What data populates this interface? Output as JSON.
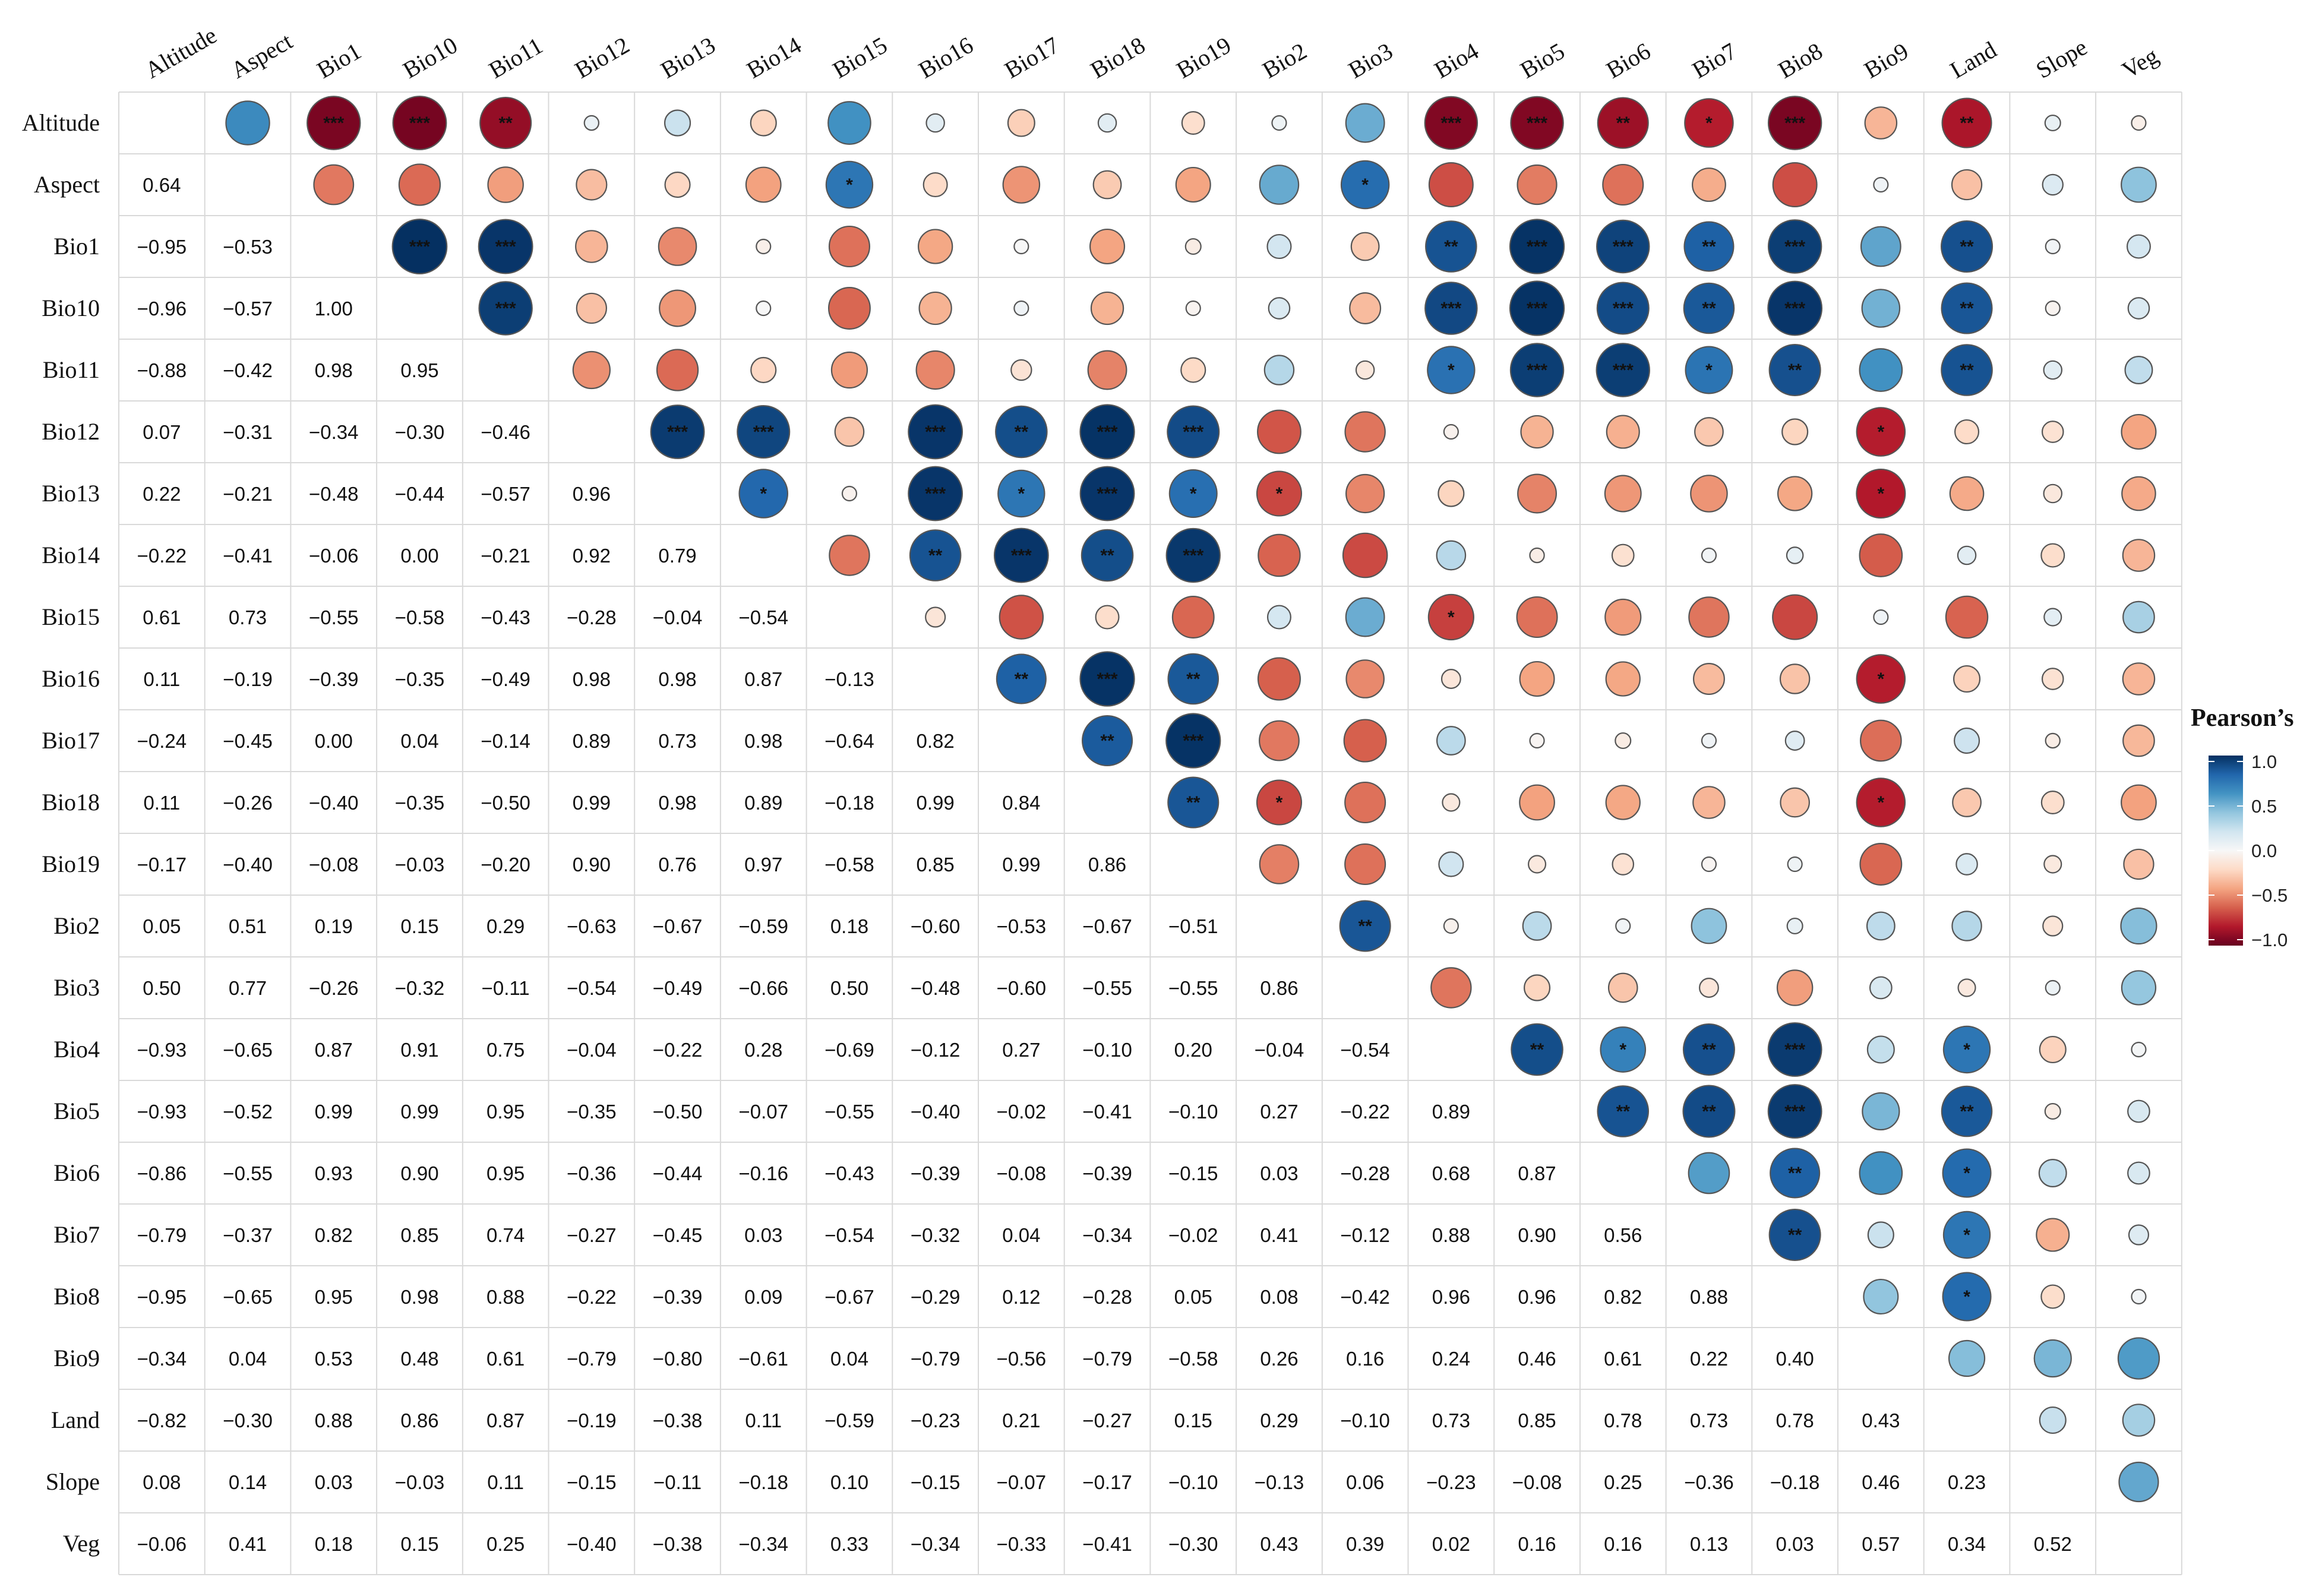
{
  "chart_data": {
    "type": "heatmap",
    "variables": [
      "Altitude",
      "Aspect",
      "Bio1",
      "Bio10",
      "Bio11",
      "Bio12",
      "Bio13",
      "Bio14",
      "Bio15",
      "Bio16",
      "Bio17",
      "Bio18",
      "Bio19",
      "Bio2",
      "Bio3",
      "Bio4",
      "Bio5",
      "Bio6",
      "Bio7",
      "Bio8",
      "Bio9",
      "Land",
      "Slope",
      "Veg"
    ],
    "lower_triangle": [
      [],
      [
        0.64
      ],
      [
        -0.95,
        -0.53
      ],
      [
        -0.96,
        -0.57,
        1.0
      ],
      [
        -0.88,
        -0.42,
        0.98,
        0.95
      ],
      [
        0.07,
        -0.31,
        -0.34,
        -0.3,
        -0.46
      ],
      [
        0.22,
        -0.21,
        -0.48,
        -0.44,
        -0.57,
        0.96
      ],
      [
        -0.22,
        -0.41,
        -0.06,
        0.0,
        -0.21,
        0.92,
        0.79
      ],
      [
        0.61,
        0.73,
        -0.55,
        -0.58,
        -0.43,
        -0.28,
        -0.04,
        -0.54
      ],
      [
        0.11,
        -0.19,
        -0.39,
        -0.35,
        -0.49,
        0.98,
        0.98,
        0.87,
        -0.13
      ],
      [
        -0.24,
        -0.45,
        -0.0,
        0.04,
        -0.14,
        0.89,
        0.73,
        0.98,
        -0.64,
        0.82
      ],
      [
        0.11,
        -0.26,
        -0.4,
        -0.35,
        -0.5,
        0.99,
        0.98,
        0.89,
        -0.18,
        0.99,
        0.84
      ],
      [
        -0.17,
        -0.4,
        -0.08,
        -0.03,
        -0.2,
        0.9,
        0.76,
        0.97,
        -0.58,
        0.85,
        0.99,
        0.86
      ],
      [
        0.05,
        0.51,
        0.19,
        0.15,
        0.29,
        -0.63,
        -0.67,
        -0.59,
        0.18,
        -0.6,
        -0.53,
        -0.67,
        -0.51
      ],
      [
        0.5,
        0.77,
        -0.26,
        -0.32,
        -0.11,
        -0.54,
        -0.49,
        -0.66,
        0.5,
        -0.48,
        -0.6,
        -0.55,
        -0.55,
        0.86
      ],
      [
        -0.93,
        -0.65,
        0.87,
        0.91,
        0.75,
        -0.04,
        -0.22,
        0.28,
        -0.69,
        -0.12,
        0.27,
        -0.1,
        0.2,
        -0.04,
        -0.54
      ],
      [
        -0.93,
        -0.52,
        0.99,
        0.99,
        0.95,
        -0.35,
        -0.5,
        -0.07,
        -0.55,
        -0.4,
        -0.02,
        -0.41,
        -0.1,
        0.27,
        -0.22,
        0.89
      ],
      [
        -0.86,
        -0.55,
        0.93,
        0.9,
        0.95,
        -0.36,
        -0.44,
        -0.16,
        -0.43,
        -0.39,
        -0.08,
        -0.39,
        -0.15,
        0.03,
        -0.28,
        0.68,
        0.87
      ],
      [
        -0.79,
        -0.37,
        0.82,
        0.85,
        0.74,
        -0.27,
        -0.45,
        0.03,
        -0.54,
        -0.32,
        0.04,
        -0.34,
        -0.02,
        0.41,
        -0.12,
        0.88,
        0.9,
        0.56
      ],
      [
        -0.95,
        -0.65,
        0.95,
        0.98,
        0.88,
        -0.22,
        -0.39,
        0.09,
        -0.67,
        -0.29,
        0.12,
        -0.28,
        0.05,
        0.08,
        -0.42,
        0.96,
        0.96,
        0.82,
        0.88
      ],
      [
        -0.34,
        0.04,
        0.53,
        0.48,
        0.61,
        -0.79,
        -0.8,
        -0.61,
        0.04,
        -0.79,
        -0.56,
        -0.79,
        -0.58,
        0.26,
        0.16,
        0.24,
        0.46,
        0.61,
        0.22,
        0.4
      ],
      [
        -0.82,
        -0.3,
        0.88,
        0.86,
        0.87,
        -0.19,
        -0.38,
        0.11,
        -0.59,
        -0.23,
        0.21,
        -0.27,
        0.15,
        0.29,
        -0.1,
        0.73,
        0.85,
        0.78,
        0.73,
        0.78,
        0.43
      ],
      [
        0.08,
        0.14,
        0.03,
        -0.03,
        0.11,
        -0.15,
        -0.11,
        -0.18,
        0.1,
        -0.15,
        -0.07,
        -0.17,
        -0.1,
        -0.13,
        0.06,
        -0.23,
        -0.08,
        0.25,
        -0.36,
        -0.18,
        0.46,
        0.23
      ],
      [
        -0.06,
        0.41,
        0.18,
        0.15,
        0.25,
        -0.4,
        -0.38,
        -0.34,
        0.33,
        -0.34,
        -0.33,
        -0.41,
        -0.3,
        0.43,
        0.39,
        0.02,
        0.16,
        0.16,
        0.13,
        0.03,
        0.57,
        0.34,
        0.52
      ]
    ],
    "significance": [
      {
        "row": 0,
        "col": 2,
        "mark": "***"
      },
      {
        "row": 0,
        "col": 3,
        "mark": "***"
      },
      {
        "row": 0,
        "col": 4,
        "mark": "**"
      },
      {
        "row": 0,
        "col": 15,
        "mark": "***"
      },
      {
        "row": 0,
        "col": 16,
        "mark": "***"
      },
      {
        "row": 0,
        "col": 17,
        "mark": "**"
      },
      {
        "row": 0,
        "col": 18,
        "mark": "*"
      },
      {
        "row": 0,
        "col": 19,
        "mark": "***"
      },
      {
        "row": 0,
        "col": 21,
        "mark": "**"
      },
      {
        "row": 1,
        "col": 8,
        "mark": "*"
      },
      {
        "row": 1,
        "col": 14,
        "mark": "*"
      },
      {
        "row": 2,
        "col": 3,
        "mark": "***"
      },
      {
        "row": 2,
        "col": 4,
        "mark": "***"
      },
      {
        "row": 2,
        "col": 15,
        "mark": "**"
      },
      {
        "row": 2,
        "col": 16,
        "mark": "***"
      },
      {
        "row": 2,
        "col": 17,
        "mark": "***"
      },
      {
        "row": 2,
        "col": 18,
        "mark": "**"
      },
      {
        "row": 2,
        "col": 19,
        "mark": "***"
      },
      {
        "row": 2,
        "col": 21,
        "mark": "**"
      },
      {
        "row": 3,
        "col": 4,
        "mark": "***"
      },
      {
        "row": 3,
        "col": 15,
        "mark": "***"
      },
      {
        "row": 3,
        "col": 16,
        "mark": "***"
      },
      {
        "row": 3,
        "col": 17,
        "mark": "***"
      },
      {
        "row": 3,
        "col": 18,
        "mark": "**"
      },
      {
        "row": 3,
        "col": 19,
        "mark": "***"
      },
      {
        "row": 3,
        "col": 21,
        "mark": "**"
      },
      {
        "row": 4,
        "col": 15,
        "mark": "*"
      },
      {
        "row": 4,
        "col": 16,
        "mark": "***"
      },
      {
        "row": 4,
        "col": 17,
        "mark": "***"
      },
      {
        "row": 4,
        "col": 18,
        "mark": "*"
      },
      {
        "row": 4,
        "col": 19,
        "mark": "**"
      },
      {
        "row": 4,
        "col": 21,
        "mark": "**"
      },
      {
        "row": 5,
        "col": 6,
        "mark": "***"
      },
      {
        "row": 5,
        "col": 7,
        "mark": "***"
      },
      {
        "row": 5,
        "col": 9,
        "mark": "***"
      },
      {
        "row": 5,
        "col": 10,
        "mark": "**"
      },
      {
        "row": 5,
        "col": 11,
        "mark": "***"
      },
      {
        "row": 5,
        "col": 12,
        "mark": "***"
      },
      {
        "row": 5,
        "col": 20,
        "mark": "*"
      },
      {
        "row": 6,
        "col": 7,
        "mark": "*"
      },
      {
        "row": 6,
        "col": 9,
        "mark": "***"
      },
      {
        "row": 6,
        "col": 10,
        "mark": "*"
      },
      {
        "row": 6,
        "col": 11,
        "mark": "***"
      },
      {
        "row": 6,
        "col": 12,
        "mark": "*"
      },
      {
        "row": 6,
        "col": 13,
        "mark": "*"
      },
      {
        "row": 6,
        "col": 20,
        "mark": "*"
      },
      {
        "row": 7,
        "col": 9,
        "mark": "**"
      },
      {
        "row": 7,
        "col": 10,
        "mark": "***"
      },
      {
        "row": 7,
        "col": 11,
        "mark": "**"
      },
      {
        "row": 7,
        "col": 12,
        "mark": "***"
      },
      {
        "row": 8,
        "col": 15,
        "mark": "*"
      },
      {
        "row": 9,
        "col": 10,
        "mark": "**"
      },
      {
        "row": 9,
        "col": 11,
        "mark": "***"
      },
      {
        "row": 9,
        "col": 12,
        "mark": "**"
      },
      {
        "row": 9,
        "col": 20,
        "mark": "*"
      },
      {
        "row": 10,
        "col": 11,
        "mark": "**"
      },
      {
        "row": 10,
        "col": 12,
        "mark": "***"
      },
      {
        "row": 11,
        "col": 12,
        "mark": "**"
      },
      {
        "row": 11,
        "col": 13,
        "mark": "*"
      },
      {
        "row": 11,
        "col": 20,
        "mark": "*"
      },
      {
        "row": 13,
        "col": 14,
        "mark": "**"
      },
      {
        "row": 15,
        "col": 16,
        "mark": "**"
      },
      {
        "row": 15,
        "col": 17,
        "mark": "*"
      },
      {
        "row": 15,
        "col": 18,
        "mark": "**"
      },
      {
        "row": 15,
        "col": 19,
        "mark": "***"
      },
      {
        "row": 15,
        "col": 21,
        "mark": "*"
      },
      {
        "row": 16,
        "col": 17,
        "mark": "**"
      },
      {
        "row": 16,
        "col": 18,
        "mark": "**"
      },
      {
        "row": 16,
        "col": 19,
        "mark": "***"
      },
      {
        "row": 16,
        "col": 21,
        "mark": "**"
      },
      {
        "row": 17,
        "col": 19,
        "mark": "**"
      },
      {
        "row": 17,
        "col": 21,
        "mark": "*"
      },
      {
        "row": 18,
        "col": 19,
        "mark": "**"
      },
      {
        "row": 18,
        "col": 21,
        "mark": "*"
      },
      {
        "row": 19,
        "col": 21,
        "mark": "*"
      }
    ],
    "upper_encoding": "circle size and color by correlation",
    "lower_encoding": "numeric value",
    "legend": {
      "title": "Pearson’s",
      "ticks": [
        "1.0",
        "0.5",
        "0.0",
        "−0.5",
        "−1.0"
      ],
      "colors": [
        "#053061",
        "#2166ac",
        "#4393c3",
        "#92c5de",
        "#d1e5f0",
        "#f7f7f7",
        "#fddbc7",
        "#f4a582",
        "#d6604d",
        "#b2182b",
        "#67001f"
      ]
    },
    "grid": true
  }
}
